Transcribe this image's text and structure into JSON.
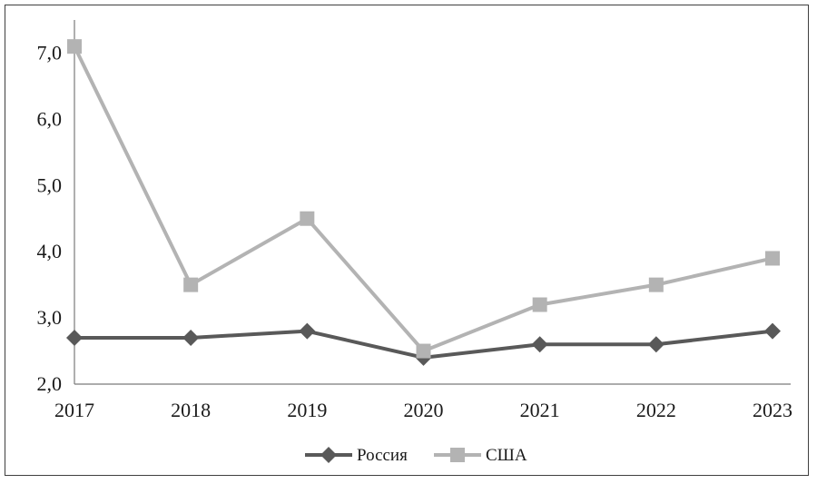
{
  "chart_data": {
    "type": "line",
    "title": "",
    "xlabel": "",
    "ylabel": "",
    "categories": [
      "2017",
      "2018",
      "2019",
      "2020",
      "2021",
      "2022",
      "2023"
    ],
    "y_ticks": [
      "2,0",
      "3,0",
      "4,0",
      "5,0",
      "6,0",
      "7,0"
    ],
    "ylim": [
      2.0,
      7.5
    ],
    "grid": false,
    "legend_position": "bottom",
    "series": [
      {
        "name": "Россия",
        "marker": "diamond",
        "color": "#595959",
        "values": [
          2.7,
          2.7,
          2.8,
          2.4,
          2.6,
          2.6,
          2.8
        ]
      },
      {
        "name": "США",
        "marker": "square",
        "color": "#b3b3b3",
        "values": [
          7.1,
          3.5,
          4.5,
          2.5,
          3.2,
          3.5,
          3.9
        ]
      }
    ]
  }
}
